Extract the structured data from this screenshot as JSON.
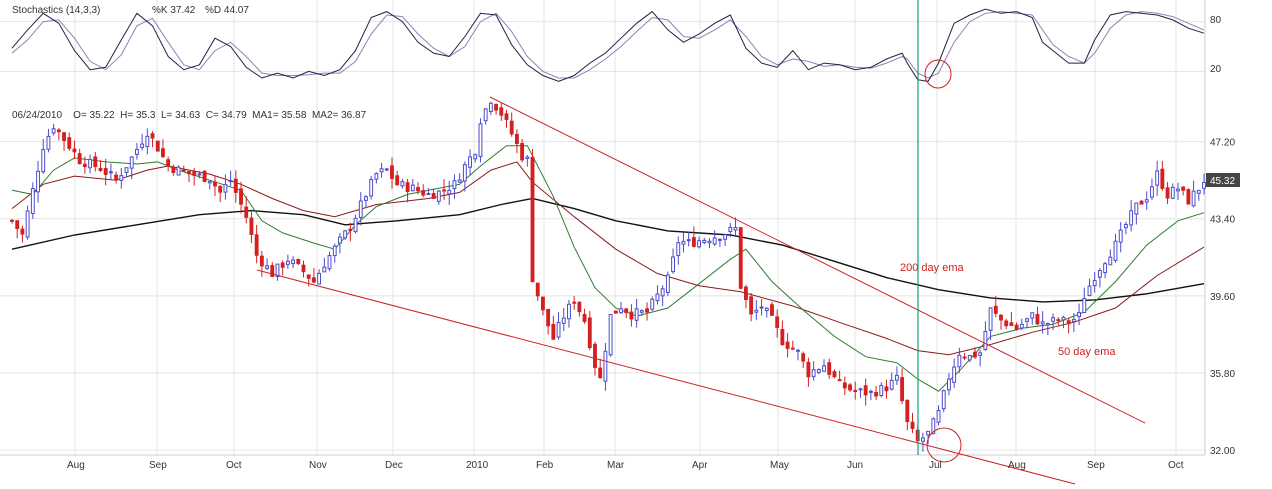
{
  "chart_data": {
    "type": "candlestick",
    "grid": true,
    "colors": {
      "up": "#4b4bd0",
      "down": "#d42020",
      "ema_50": "#2e7d2e",
      "ema_20": "#8b1a1a",
      "ema_200": "#111111",
      "stoch_k": "#222244",
      "stoch_d": "#9c7cb8",
      "trendline": "#cc2222",
      "marker": "#12a07a",
      "grid": "#e4e4e4"
    },
    "price_axis": {
      "ticks": [
        "47.20",
        "43.40",
        "39.60",
        "35.80",
        "32.00"
      ],
      "ylim": [
        32.0,
        49.5
      ],
      "last_price": "45.32"
    },
    "stoch_axis": {
      "ticks": [
        "80",
        "20"
      ],
      "ylim": [
        0,
        100
      ]
    },
    "x_months": [
      "Aug",
      "Sep",
      "Oct",
      "Nov",
      "Dec",
      "2010",
      "Feb",
      "Mar",
      "Apr",
      "May",
      "Jun",
      "Jul",
      "Aug",
      "Sep",
      "Oct"
    ],
    "header": {
      "stoch_label": "Stochastics (14,3,3)",
      "stoch_k": "%K  37.42",
      "stoch_d": "%D  44.07",
      "ohlc": "06/24/2010    O= 35.22  H= 35.3  L= 34.63  C= 34.79  MA1= 35.58  MA2= 36.87"
    },
    "annotations": {
      "ema200": "200 day ema",
      "ema50": "50 day ema"
    },
    "price_path": [
      [
        0,
        43.3
      ],
      [
        2,
        42.6
      ],
      [
        4,
        44.8
      ],
      [
        6,
        47.0
      ],
      [
        8,
        48.0
      ],
      [
        11,
        47.0
      ],
      [
        13,
        46.3
      ],
      [
        17,
        45.9
      ],
      [
        20,
        45.3
      ],
      [
        23,
        46.4
      ],
      [
        26,
        47.7
      ],
      [
        28,
        46.9
      ],
      [
        30,
        46.0
      ],
      [
        33,
        45.7
      ],
      [
        36,
        45.5
      ],
      [
        38,
        45.4
      ],
      [
        40,
        44.7
      ],
      [
        42,
        45.3
      ],
      [
        45,
        43.5
      ],
      [
        47,
        41.6
      ],
      [
        50,
        40.7
      ],
      [
        53,
        41.4
      ],
      [
        56,
        40.8
      ],
      [
        58,
        40.3
      ],
      [
        60,
        41.2
      ],
      [
        63,
        42.3
      ],
      [
        65,
        43.0
      ],
      [
        68,
        44.6
      ],
      [
        70,
        45.6
      ],
      [
        72,
        45.8
      ],
      [
        74,
        45.1
      ],
      [
        77,
        44.9
      ],
      [
        80,
        44.6
      ],
      [
        82,
        44.7
      ],
      [
        85,
        45.1
      ],
      [
        87,
        46.0
      ],
      [
        89,
        46.8
      ],
      [
        90,
        48.3
      ],
      [
        92,
        49.3
      ],
      [
        94,
        48.6
      ],
      [
        96,
        47.6
      ],
      [
        98,
        46.5
      ],
      [
        99,
        46.3
      ],
      [
        100,
        40.5
      ],
      [
        102,
        38.8
      ],
      [
        104,
        37.5
      ],
      [
        106,
        38.6
      ],
      [
        108,
        39.4
      ],
      [
        110,
        38.4
      ],
      [
        112,
        36.2
      ],
      [
        113,
        35.5
      ],
      [
        115,
        38.6
      ],
      [
        117,
        39.1
      ],
      [
        119,
        38.7
      ],
      [
        122,
        38.8
      ],
      [
        124,
        39.6
      ],
      [
        126,
        40.4
      ],
      [
        128,
        42.3
      ],
      [
        130,
        42.2
      ],
      [
        133,
        42.4
      ],
      [
        136,
        42.6
      ],
      [
        139,
        42.9
      ],
      [
        140,
        40.1
      ],
      [
        142,
        38.6
      ],
      [
        144,
        39.1
      ],
      [
        146,
        38.4
      ],
      [
        148,
        37.4
      ],
      [
        151,
        36.8
      ],
      [
        153,
        35.8
      ],
      [
        156,
        36.2
      ],
      [
        159,
        35.2
      ],
      [
        162,
        34.9
      ],
      [
        165,
        34.8
      ],
      [
        168,
        35.1
      ],
      [
        170,
        35.5
      ],
      [
        172,
        33.3
      ],
      [
        174,
        32.4
      ],
      [
        176,
        32.8
      ],
      [
        178,
        33.8
      ],
      [
        180,
        35.6
      ],
      [
        182,
        36.8
      ],
      [
        184,
        36.6
      ],
      [
        186,
        36.8
      ],
      [
        188,
        38.9
      ],
      [
        190,
        38.4
      ],
      [
        193,
        38.0
      ],
      [
        196,
        38.6
      ],
      [
        198,
        38.2
      ],
      [
        201,
        38.4
      ],
      [
        203,
        38.3
      ],
      [
        205,
        38.6
      ],
      [
        206,
        39.6
      ],
      [
        208,
        40.6
      ],
      [
        210,
        41.4
      ],
      [
        212,
        42.1
      ],
      [
        214,
        43.1
      ],
      [
        216,
        44.0
      ],
      [
        218,
        44.5
      ],
      [
        220,
        45.6
      ],
      [
        222,
        44.6
      ],
      [
        224,
        44.9
      ],
      [
        226,
        44.3
      ],
      [
        228,
        44.9
      ],
      [
        229,
        45.3
      ]
    ],
    "ema50": [
      [
        0,
        44.8
      ],
      [
        4,
        44.6
      ],
      [
        8,
        45.8
      ],
      [
        12,
        46.4
      ],
      [
        18,
        46.2
      ],
      [
        24,
        46.1
      ],
      [
        28,
        46.2
      ],
      [
        32,
        45.8
      ],
      [
        38,
        45.3
      ],
      [
        44,
        44.8
      ],
      [
        48,
        43.3
      ],
      [
        52,
        42.7
      ],
      [
        58,
        42.2
      ],
      [
        62,
        41.9
      ],
      [
        66,
        43.1
      ],
      [
        70,
        44.0
      ],
      [
        76,
        44.6
      ],
      [
        82,
        44.9
      ],
      [
        86,
        45.1
      ],
      [
        90,
        46.0
      ],
      [
        95,
        47.0
      ],
      [
        99,
        47.0
      ],
      [
        104,
        44.5
      ],
      [
        108,
        42.0
      ],
      [
        112,
        40.0
      ],
      [
        116,
        39.0
      ],
      [
        120,
        38.6
      ],
      [
        126,
        39.0
      ],
      [
        132,
        40.2
      ],
      [
        138,
        41.4
      ],
      [
        141,
        41.9
      ],
      [
        146,
        40.3
      ],
      [
        152,
        38.9
      ],
      [
        158,
        37.6
      ],
      [
        164,
        36.6
      ],
      [
        170,
        36.3
      ],
      [
        174,
        35.5
      ],
      [
        178,
        34.9
      ],
      [
        182,
        35.9
      ],
      [
        188,
        37.6
      ],
      [
        194,
        38.0
      ],
      [
        200,
        38.2
      ],
      [
        206,
        38.8
      ],
      [
        212,
        40.3
      ],
      [
        218,
        42.1
      ],
      [
        224,
        43.3
      ],
      [
        229,
        43.7
      ]
    ],
    "ema20": [
      [
        0,
        43.9
      ],
      [
        6,
        45.1
      ],
      [
        12,
        45.5
      ],
      [
        20,
        45.3
      ],
      [
        26,
        45.8
      ],
      [
        30,
        46.0
      ],
      [
        38,
        45.6
      ],
      [
        44,
        45.1
      ],
      [
        50,
        44.4
      ],
      [
        56,
        43.8
      ],
      [
        62,
        43.5
      ],
      [
        70,
        44.1
      ],
      [
        80,
        44.4
      ],
      [
        86,
        44.7
      ],
      [
        92,
        45.8
      ],
      [
        97,
        46.2
      ],
      [
        100,
        45.2
      ],
      [
        108,
        43.5
      ],
      [
        116,
        41.9
      ],
      [
        124,
        40.7
      ],
      [
        132,
        40.1
      ],
      [
        140,
        39.8
      ],
      [
        150,
        39.1
      ],
      [
        160,
        38.2
      ],
      [
        168,
        37.5
      ],
      [
        174,
        36.9
      ],
      [
        180,
        36.7
      ],
      [
        188,
        37.2
      ],
      [
        196,
        37.8
      ],
      [
        204,
        38.3
      ],
      [
        212,
        39.0
      ],
      [
        220,
        40.6
      ],
      [
        229,
        42.0
      ]
    ],
    "ema200": [
      [
        0,
        41.9
      ],
      [
        12,
        42.6
      ],
      [
        24,
        43.1
      ],
      [
        36,
        43.6
      ],
      [
        46,
        43.8
      ],
      [
        56,
        43.6
      ],
      [
        64,
        43.1
      ],
      [
        74,
        43.3
      ],
      [
        86,
        43.6
      ],
      [
        94,
        44.1
      ],
      [
        100,
        44.4
      ],
      [
        108,
        43.9
      ],
      [
        116,
        43.3
      ],
      [
        126,
        42.8
      ],
      [
        138,
        42.6
      ],
      [
        148,
        42.1
      ],
      [
        158,
        41.3
      ],
      [
        168,
        40.5
      ],
      [
        178,
        39.9
      ],
      [
        188,
        39.5
      ],
      [
        198,
        39.3
      ],
      [
        208,
        39.4
      ],
      [
        218,
        39.7
      ],
      [
        229,
        40.2
      ]
    ],
    "stoch_k": [
      [
        0,
        48
      ],
      [
        3,
        70
      ],
      [
        6,
        90
      ],
      [
        9,
        78
      ],
      [
        12,
        45
      ],
      [
        15,
        22
      ],
      [
        18,
        25
      ],
      [
        21,
        58
      ],
      [
        24,
        90
      ],
      [
        27,
        75
      ],
      [
        30,
        38
      ],
      [
        33,
        22
      ],
      [
        36,
        28
      ],
      [
        39,
        60
      ],
      [
        42,
        50
      ],
      [
        45,
        25
      ],
      [
        48,
        12
      ],
      [
        51,
        18
      ],
      [
        54,
        12
      ],
      [
        57,
        20
      ],
      [
        60,
        15
      ],
      [
        63,
        22
      ],
      [
        66,
        45
      ],
      [
        69,
        85
      ],
      [
        72,
        92
      ],
      [
        75,
        80
      ],
      [
        78,
        55
      ],
      [
        81,
        42
      ],
      [
        84,
        38
      ],
      [
        87,
        62
      ],
      [
        90,
        90
      ],
      [
        93,
        88
      ],
      [
        96,
        52
      ],
      [
        99,
        28
      ],
      [
        102,
        15
      ],
      [
        105,
        8
      ],
      [
        108,
        15
      ],
      [
        111,
        30
      ],
      [
        114,
        42
      ],
      [
        117,
        60
      ],
      [
        120,
        78
      ],
      [
        123,
        92
      ],
      [
        126,
        70
      ],
      [
        129,
        55
      ],
      [
        132,
        65
      ],
      [
        135,
        78
      ],
      [
        138,
        88
      ],
      [
        141,
        48
      ],
      [
        144,
        30
      ],
      [
        147,
        25
      ],
      [
        150,
        45
      ],
      [
        153,
        22
      ],
      [
        156,
        30
      ],
      [
        159,
        28
      ],
      [
        162,
        22
      ],
      [
        165,
        25
      ],
      [
        168,
        35
      ],
      [
        171,
        42
      ],
      [
        172,
        30
      ],
      [
        174,
        10
      ],
      [
        176,
        8
      ],
      [
        178,
        30
      ],
      [
        181,
        78
      ],
      [
        184,
        88
      ],
      [
        187,
        95
      ],
      [
        190,
        90
      ],
      [
        193,
        92
      ],
      [
        196,
        85
      ],
      [
        198,
        55
      ],
      [
        200,
        45
      ],
      [
        203,
        30
      ],
      [
        206,
        30
      ],
      [
        208,
        58
      ],
      [
        211,
        88
      ],
      [
        214,
        92
      ],
      [
        217,
        90
      ],
      [
        220,
        88
      ],
      [
        223,
        82
      ],
      [
        226,
        72
      ],
      [
        229,
        66
      ]
    ],
    "stoch_d": [
      [
        0,
        42
      ],
      [
        3,
        58
      ],
      [
        6,
        80
      ],
      [
        9,
        82
      ],
      [
        12,
        60
      ],
      [
        15,
        32
      ],
      [
        18,
        22
      ],
      [
        21,
        40
      ],
      [
        24,
        75
      ],
      [
        27,
        84
      ],
      [
        30,
        55
      ],
      [
        33,
        28
      ],
      [
        36,
        22
      ],
      [
        39,
        45
      ],
      [
        42,
        55
      ],
      [
        45,
        38
      ],
      [
        48,
        18
      ],
      [
        51,
        15
      ],
      [
        54,
        15
      ],
      [
        57,
        16
      ],
      [
        60,
        18
      ],
      [
        63,
        18
      ],
      [
        66,
        32
      ],
      [
        69,
        65
      ],
      [
        72,
        88
      ],
      [
        75,
        86
      ],
      [
        78,
        65
      ],
      [
        81,
        48
      ],
      [
        84,
        38
      ],
      [
        87,
        50
      ],
      [
        90,
        80
      ],
      [
        93,
        90
      ],
      [
        96,
        68
      ],
      [
        99,
        38
      ],
      [
        102,
        20
      ],
      [
        105,
        12
      ],
      [
        108,
        12
      ],
      [
        111,
        22
      ],
      [
        114,
        35
      ],
      [
        117,
        50
      ],
      [
        120,
        68
      ],
      [
        123,
        85
      ],
      [
        126,
        82
      ],
      [
        129,
        62
      ],
      [
        132,
        60
      ],
      [
        135,
        70
      ],
      [
        138,
        82
      ],
      [
        141,
        62
      ],
      [
        144,
        38
      ],
      [
        147,
        28
      ],
      [
        150,
        35
      ],
      [
        153,
        32
      ],
      [
        156,
        26
      ],
      [
        159,
        28
      ],
      [
        162,
        25
      ],
      [
        165,
        24
      ],
      [
        168,
        30
      ],
      [
        171,
        38
      ],
      [
        172,
        35
      ],
      [
        174,
        18
      ],
      [
        176,
        12
      ],
      [
        178,
        18
      ],
      [
        181,
        55
      ],
      [
        184,
        80
      ],
      [
        187,
        90
      ],
      [
        190,
        92
      ],
      [
        193,
        90
      ],
      [
        196,
        88
      ],
      [
        198,
        70
      ],
      [
        200,
        52
      ],
      [
        203,
        38
      ],
      [
        206,
        30
      ],
      [
        208,
        42
      ],
      [
        211,
        72
      ],
      [
        214,
        88
      ],
      [
        217,
        92
      ],
      [
        220,
        90
      ],
      [
        223,
        86
      ],
      [
        226,
        78
      ],
      [
        229,
        70
      ]
    ]
  }
}
